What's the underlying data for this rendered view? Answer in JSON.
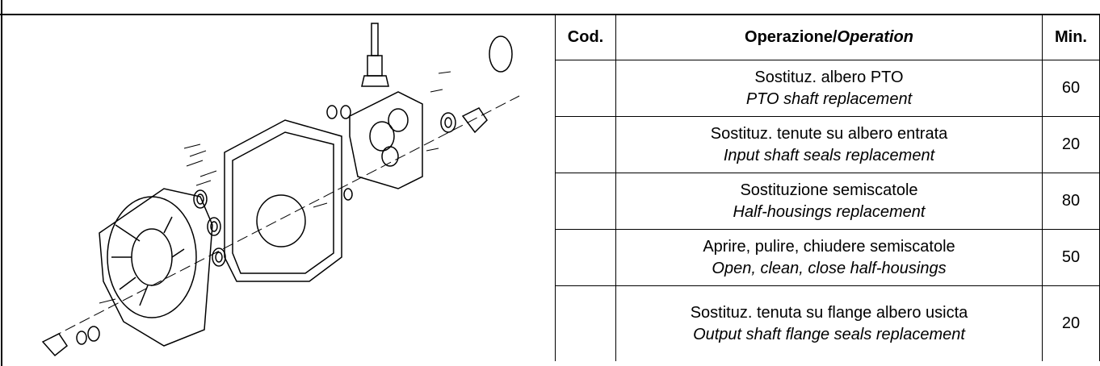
{
  "header": {
    "cod": "Cod.",
    "operation_it": "Operazione/",
    "operation_en": "Operation",
    "min": "Min."
  },
  "rows": [
    {
      "it": "Sostituz. albero PTO",
      "en": "PTO shaft replacement",
      "min": 60
    },
    {
      "it": "Sostituz. tenute su albero entrata",
      "en": "Input shaft seals replacement",
      "min": 20
    },
    {
      "it": "Sostituzione semiscatole",
      "en": "Half-housings replacement",
      "min": 80
    },
    {
      "it": "Aprire, pulire, chiudere semiscatole",
      "en": "Open, clean, close half-housings",
      "min": 50
    },
    {
      "it": "Sostituz. tenuta su flange albero  usicta",
      "en": "Output shaft flange seals replacement",
      "min": 20
    }
  ]
}
